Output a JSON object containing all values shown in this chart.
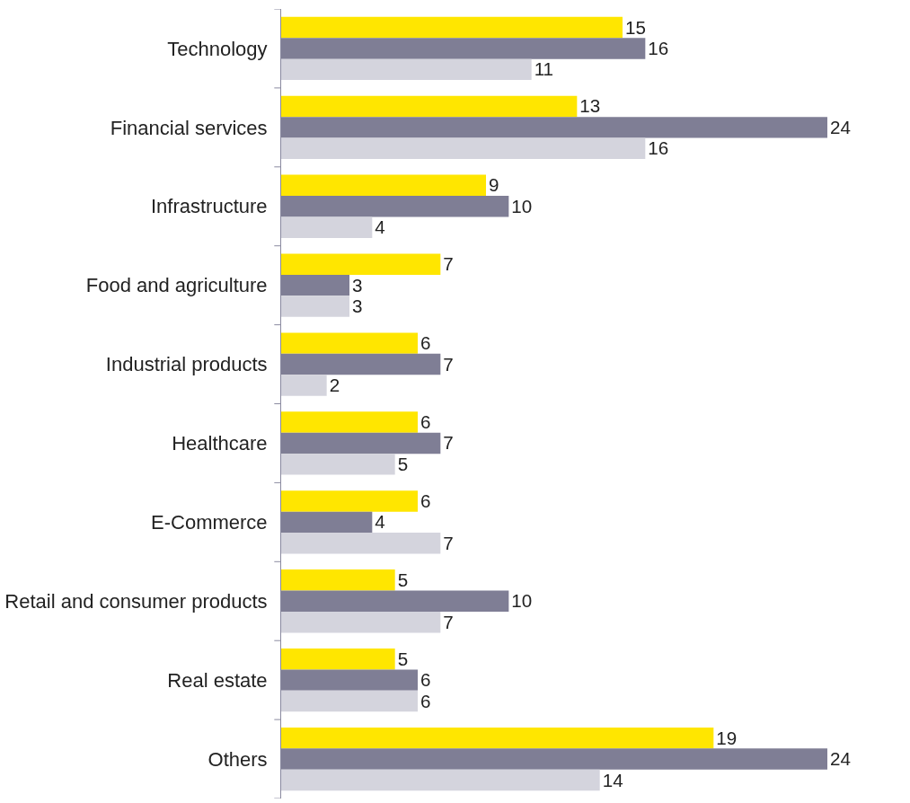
{
  "chart_data": {
    "type": "bar",
    "orientation": "horizontal",
    "categories": [
      "Technology",
      "Financial services",
      "Infrastructure",
      "Food and agriculture",
      "Industrial products",
      "Healthcare",
      "E-Commerce",
      "Retail and consumer products",
      "Real estate",
      "Others"
    ],
    "series": [
      {
        "color": "#ffe600",
        "values": [
          15,
          13,
          9,
          7,
          6,
          6,
          6,
          5,
          5,
          19
        ]
      },
      {
        "color": "#7f7e95",
        "values": [
          16,
          24,
          10,
          3,
          7,
          7,
          4,
          10,
          6,
          24
        ]
      },
      {
        "color": "#d4d4dd",
        "values": [
          11,
          16,
          4,
          3,
          2,
          5,
          7,
          7,
          6,
          14
        ]
      }
    ],
    "data_labels": true,
    "tick_labels": "y"
  }
}
